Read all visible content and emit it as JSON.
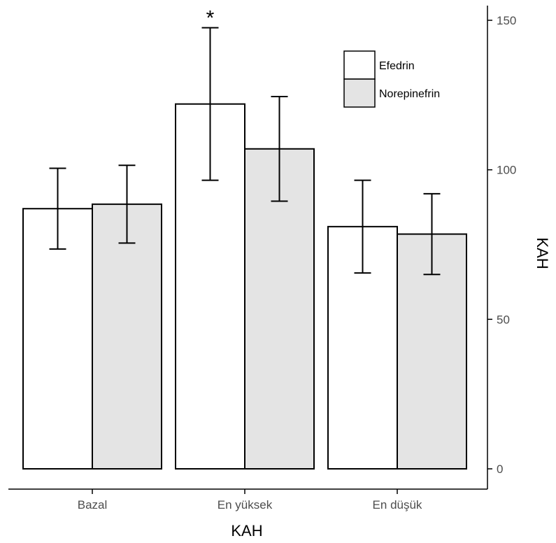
{
  "chart_data": {
    "type": "bar",
    "categories": [
      "Bazal",
      "En yüksek",
      "En düşük"
    ],
    "series": [
      {
        "name": "Efedrin",
        "values": [
          87,
          122,
          81
        ],
        "error": [
          13.5,
          25.5,
          15.5
        ],
        "color": "#ffffff"
      },
      {
        "name": "Norepinefrin",
        "values": [
          88.5,
          107,
          78.5
        ],
        "error": [
          13,
          17.5,
          13.5
        ],
        "color": "#e4e4e4"
      }
    ],
    "annotations": [
      {
        "category": "En yüksek",
        "series": "Efedrin",
        "text": "*"
      }
    ],
    "xlabel": "KAH",
    "ylabel": "KAH",
    "y_axis_side": "right",
    "ylim": [
      0,
      150
    ],
    "yticks": [
      0,
      50,
      100,
      150
    ],
    "grid": false,
    "legend_position": "top-right",
    "bar_stroke": "#000000"
  }
}
